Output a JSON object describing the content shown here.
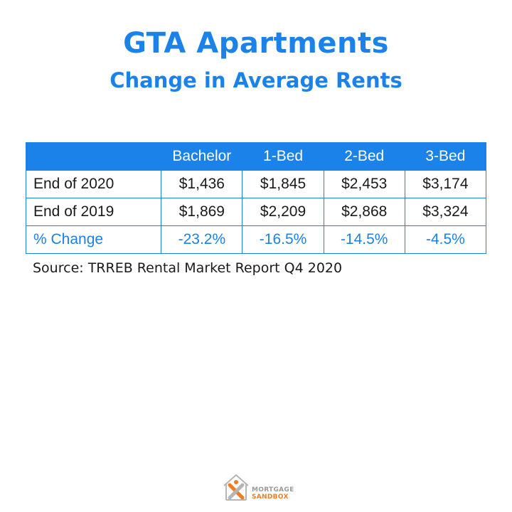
{
  "header": {
    "title": "GTA Apartments",
    "subtitle": "Change in Average Rents"
  },
  "chart_data": {
    "type": "table",
    "title": "GTA Apartments",
    "subtitle": "Change in Average Rents",
    "columns": [
      "",
      "Bachelor",
      "1-Bed",
      "2-Bed",
      "3-Bed"
    ],
    "rows": [
      {
        "label": "End of 2020",
        "values": [
          "$1,436",
          "$1,845",
          "$2,453",
          "$3,174"
        ]
      },
      {
        "label": "End of 2019",
        "values": [
          "$1,869",
          "$2,209",
          "$2,868",
          "$3,324"
        ]
      },
      {
        "label": "% Change",
        "values": [
          "-23.2%",
          "-16.5%",
          "-14.5%",
          "-4.5%"
        ]
      }
    ],
    "numeric": {
      "end_2020": [
        1436,
        1845,
        2453,
        3174
      ],
      "end_2019": [
        1869,
        2209,
        2868,
        3324
      ],
      "pct_change": [
        -23.2,
        -16.5,
        -14.5,
        -4.5
      ]
    }
  },
  "footer": {
    "source": "Source: TRREB Rental Market Report Q4 2020",
    "logo_line1": "MORTGAGE",
    "logo_line2": "SANDBOX"
  },
  "colors": {
    "accent": "#1a82e8",
    "text": "#1a1a1a",
    "logo_orange": "#f47b20",
    "logo_gray": "#9a9a9a"
  },
  "icons": {
    "logo": "house-x-logo-icon"
  }
}
